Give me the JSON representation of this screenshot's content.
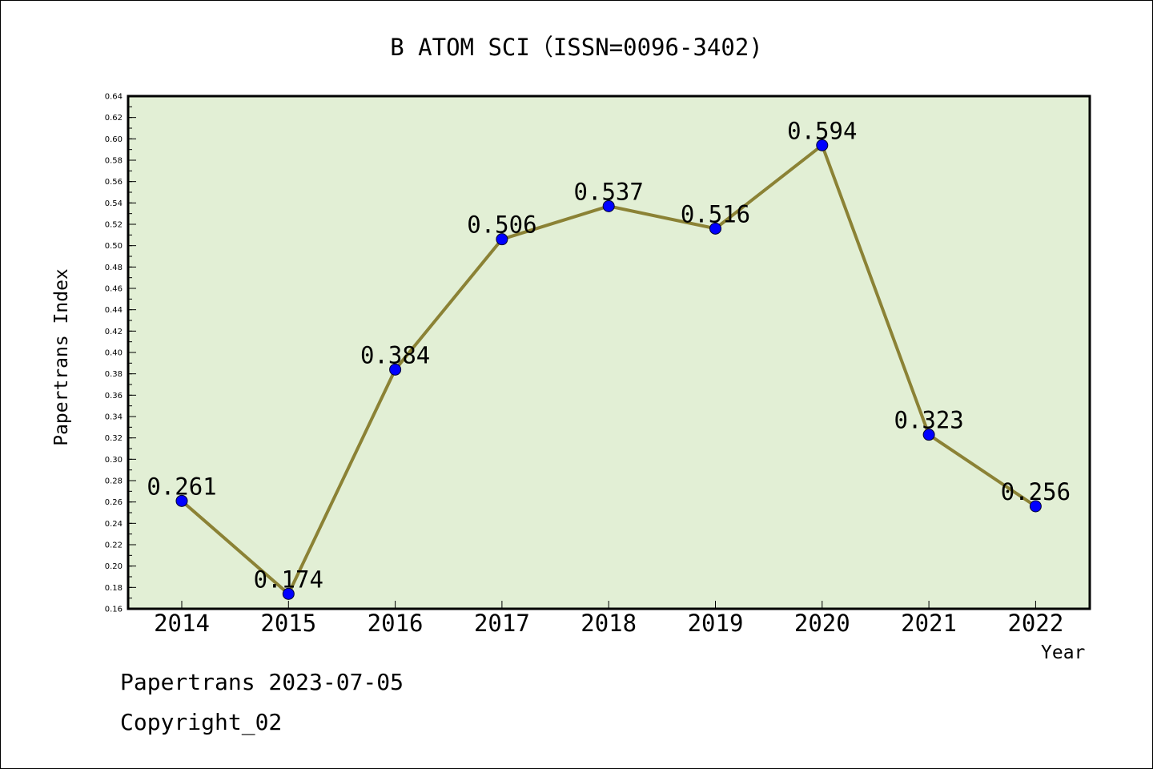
{
  "chart_data": {
    "type": "line",
    "title": "B ATOM SCI（ISSN=0096-3402)",
    "xlabel": "Year",
    "ylabel": "Papertrans Index",
    "categories": [
      "2014",
      "2015",
      "2016",
      "2017",
      "2018",
      "2019",
      "2020",
      "2021",
      "2022"
    ],
    "values": [
      0.261,
      0.174,
      0.384,
      0.506,
      0.537,
      0.516,
      0.594,
      0.323,
      0.256
    ],
    "data_labels": [
      "0.261",
      "0.174",
      "0.384",
      "0.506",
      "0.537",
      "0.516",
      "0.594",
      "0.323",
      "0.256"
    ],
    "ylim": [
      0.16,
      0.64
    ],
    "yticks": [
      "0.16",
      "0.18",
      "0.20",
      "0.22",
      "0.24",
      "0.26",
      "0.28",
      "0.30",
      "0.32",
      "0.34",
      "0.36",
      "0.38",
      "0.40",
      "0.42",
      "0.44",
      "0.46",
      "0.48",
      "0.50",
      "0.52",
      "0.54",
      "0.56",
      "0.58",
      "0.60",
      "0.62",
      "0.64"
    ],
    "grid": false,
    "colors": {
      "plot_background": "#e2efd5",
      "line": "#8b8235",
      "marker": "#0000ff"
    }
  },
  "footer": {
    "line1": "Papertrans 2023-07-05",
    "line2": "Copyright_02"
  }
}
